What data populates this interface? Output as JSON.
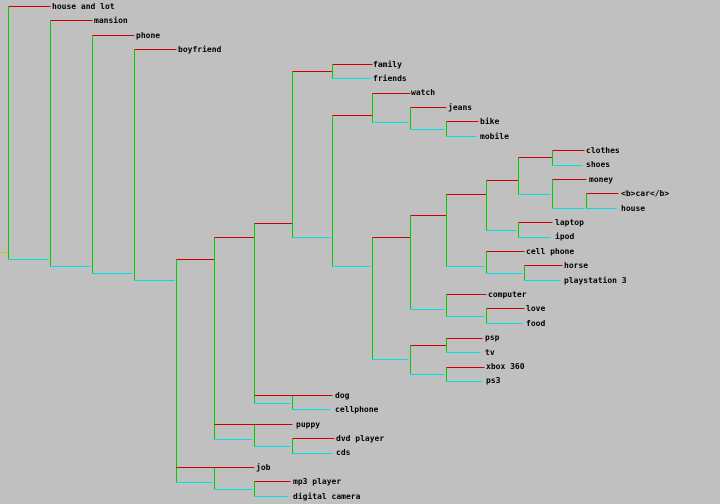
{
  "colors": {
    "background": "#c0c0c0",
    "upper_branch": "#cc0000",
    "lower_branch": "#00e0e0",
    "vertical": "#00cc00",
    "text": "#000000"
  },
  "labels": {
    "house_and_lot": "house and lot",
    "mansion": "mansion",
    "phone": "phone",
    "boyfriend": "boyfriend",
    "family": "family",
    "friends": "friends",
    "watch": "watch",
    "jeans": "jeans",
    "bike": "bike",
    "mobile": "mobile",
    "clothes": "clothes",
    "shoes": "shoes",
    "money": "money",
    "car": "<b>car</b>",
    "house": "house",
    "laptop": "laptop",
    "ipod": "ipod",
    "cell_phone": "cell phone",
    "horse": "horse",
    "playstation_3": "playstation 3",
    "computer": "computer",
    "love": "love",
    "food": "food",
    "psp": "psp",
    "tv": "tv",
    "xbox_360": "xbox 360",
    "ps3": "ps3",
    "dog": "dog",
    "cellphone": "cellphone",
    "puppy": "puppy",
    "dvd_player": "dvd player",
    "cds": "cds",
    "job": "job",
    "mp3_player": "mp3 player",
    "digital_camera": "digital camera"
  }
}
